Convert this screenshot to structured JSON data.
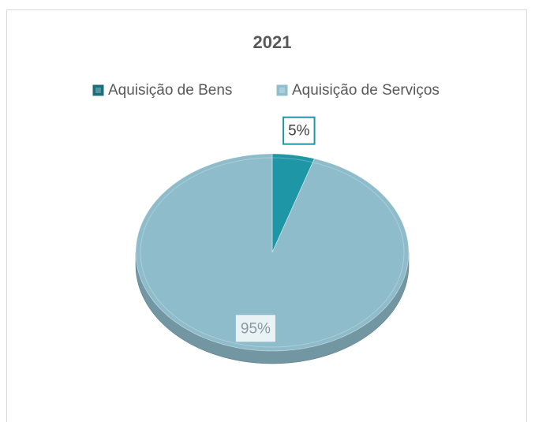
{
  "chart_data": {
    "type": "pie",
    "title": "2021",
    "categories": [
      "Aquisição de Bens",
      "Aquisição de Serviços"
    ],
    "values": [
      5,
      95
    ],
    "value_labels": [
      "5%",
      "95%"
    ],
    "colors": [
      "#1f96a6",
      "#8fbccb"
    ],
    "legend_colors": [
      "#1d6f7c",
      "#8fbfcd"
    ],
    "legend": "top"
  }
}
